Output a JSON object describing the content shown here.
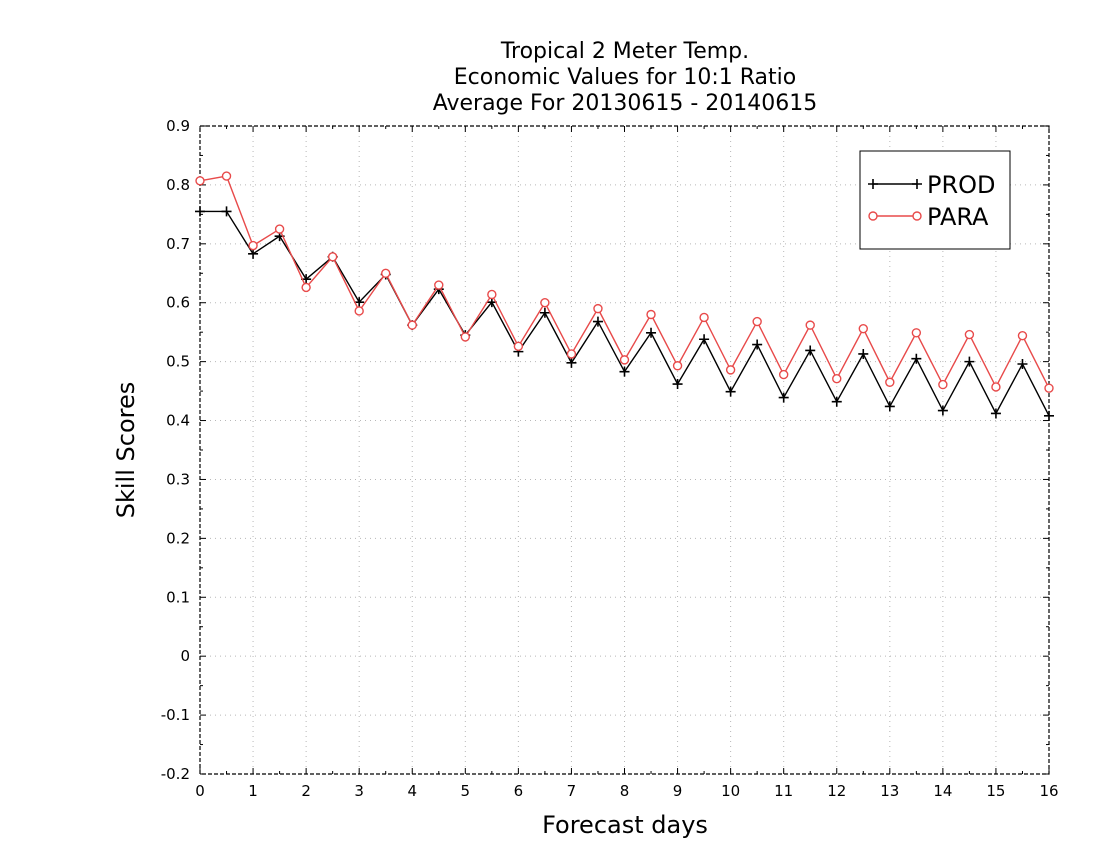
{
  "chart_data": {
    "type": "line",
    "title": [
      "Tropical 2 Meter Temp.",
      "Economic Values for 10:1 Ratio",
      "Average For 20130615 - 20140615"
    ],
    "xlabel": "Forecast days",
    "ylabel": "Skill Scores",
    "xlim": [
      0,
      16
    ],
    "ylim": [
      -0.2,
      0.9
    ],
    "x_ticks": [
      0,
      1,
      2,
      3,
      4,
      5,
      6,
      7,
      8,
      9,
      10,
      11,
      12,
      13,
      14,
      15,
      16
    ],
    "y_ticks": [
      -0.2,
      -0.1,
      0,
      0.1,
      0.2,
      0.3,
      0.4,
      0.5,
      0.6,
      0.7,
      0.8,
      0.9
    ],
    "y_tick_labels": [
      "-0.2",
      "-0.1",
      "0",
      "0.1",
      "0.2",
      "0.3",
      "0.4",
      "0.5",
      "0.6",
      "0.7",
      "0.8",
      "0.9"
    ],
    "grid": true,
    "legend_position": "top-right",
    "x": [
      0,
      0.5,
      1,
      1.5,
      2,
      2.5,
      3,
      3.5,
      4,
      4.5,
      5,
      5.5,
      6,
      6.5,
      7,
      7.5,
      8,
      8.5,
      9,
      9.5,
      10,
      10.5,
      11,
      11.5,
      12,
      12.5,
      13,
      13.5,
      14,
      14.5,
      15,
      15.5,
      16
    ],
    "series": [
      {
        "name": "PROD",
        "color": "#000000",
        "marker": "plus",
        "values": [
          0.755,
          0.755,
          0.683,
          0.713,
          0.64,
          0.678,
          0.601,
          0.648,
          0.562,
          0.623,
          0.545,
          0.601,
          0.517,
          0.583,
          0.498,
          0.568,
          0.483,
          0.549,
          0.462,
          0.538,
          0.449,
          0.529,
          0.439,
          0.519,
          0.432,
          0.513,
          0.424,
          0.505,
          0.417,
          0.5,
          0.412,
          0.496,
          0.408
        ]
      },
      {
        "name": "PARA",
        "color": "#e84a4a",
        "marker": "circle",
        "values": [
          0.807,
          0.815,
          0.697,
          0.725,
          0.626,
          0.678,
          0.586,
          0.65,
          0.562,
          0.63,
          0.542,
          0.614,
          0.526,
          0.6,
          0.513,
          0.59,
          0.503,
          0.58,
          0.493,
          0.575,
          0.486,
          0.568,
          0.478,
          0.562,
          0.471,
          0.556,
          0.465,
          0.549,
          0.461,
          0.546,
          0.457,
          0.544,
          0.455
        ]
      }
    ]
  }
}
